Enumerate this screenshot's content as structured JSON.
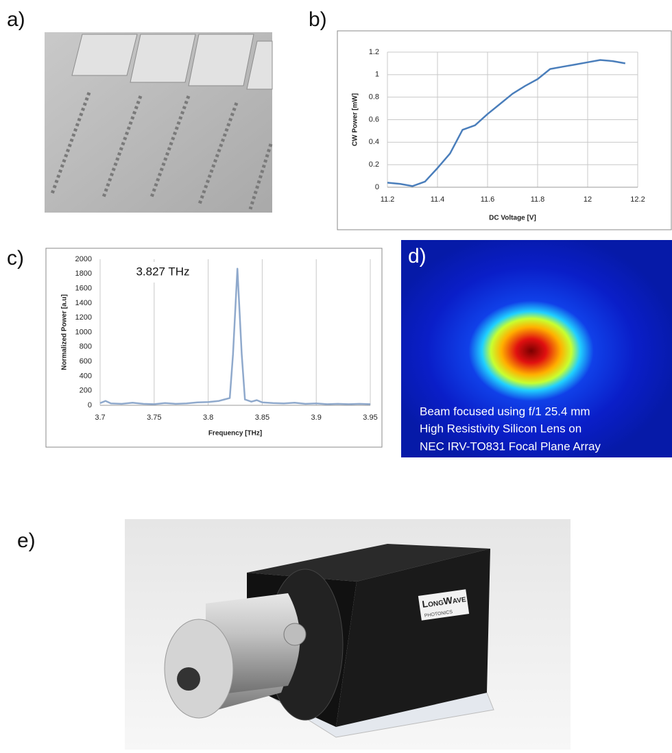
{
  "panel_labels": [
    "a)",
    "b)",
    "c)",
    "d)",
    "e)"
  ],
  "chart_data": [
    {
      "type": "line",
      "xlabel": "DC Voltage [V]",
      "ylabel": "CW Power [mW]",
      "xlim": [
        11.2,
        12.2
      ],
      "xticks": [
        11.2,
        11.4,
        11.6,
        11.8,
        12,
        12.2
      ],
      "ylim": [
        0,
        1.2
      ],
      "yticks": [
        0,
        0.2,
        0.4,
        0.6,
        0.8,
        1,
        1.2
      ],
      "grid": [
        "x",
        "y"
      ],
      "series": [
        {
          "color": "#4a7ebb",
          "x": [
            11.2,
            11.25,
            11.3,
            11.35,
            11.4,
            11.45,
            11.5,
            11.55,
            11.6,
            11.65,
            11.7,
            11.75,
            11.8,
            11.85,
            11.9,
            11.95,
            12.0,
            12.05,
            12.1,
            12.15
          ],
          "values": [
            0.04,
            0.03,
            0.01,
            0.05,
            0.17,
            0.3,
            0.51,
            0.55,
            0.65,
            0.74,
            0.83,
            0.9,
            0.96,
            1.05,
            1.07,
            1.09,
            1.11,
            1.13,
            1.12,
            1.1
          ]
        }
      ]
    },
    {
      "type": "line",
      "xlabel": "Frequency [THz]",
      "ylabel": "Normalized Power [a.u]",
      "annotation": "3.827 THz",
      "xlim": [
        3.7,
        3.95
      ],
      "xticks": [
        3.7,
        3.75,
        3.8,
        3.85,
        3.9,
        3.95
      ],
      "ylim": [
        0,
        2000
      ],
      "yticks": [
        0,
        200,
        400,
        600,
        800,
        1000,
        1200,
        1400,
        1600,
        1800,
        2000
      ],
      "grid": [
        "x"
      ],
      "series": [
        {
          "color": "#8fa9cc",
          "x": [
            3.7,
            3.705,
            3.71,
            3.72,
            3.73,
            3.74,
            3.75,
            3.76,
            3.77,
            3.78,
            3.79,
            3.8,
            3.81,
            3.815,
            3.82,
            3.823,
            3.827,
            3.831,
            3.834,
            3.84,
            3.845,
            3.85,
            3.86,
            3.87,
            3.88,
            3.89,
            3.9,
            3.91,
            3.92,
            3.93,
            3.94,
            3.95
          ],
          "values": [
            30,
            60,
            25,
            20,
            35,
            20,
            15,
            30,
            20,
            25,
            40,
            45,
            60,
            80,
            100,
            700,
            1870,
            700,
            80,
            50,
            70,
            40,
            30,
            25,
            35,
            20,
            25,
            15,
            20,
            15,
            20,
            15
          ]
        }
      ]
    }
  ],
  "beam_caption": [
    "Beam focused using f/1 25.4 mm",
    "High Resistivity Silicon Lens on",
    "NEC IRV-TO831 Focal Plane Array"
  ],
  "logo": {
    "name": "LongWave",
    "sub": "PHOTONICS"
  }
}
